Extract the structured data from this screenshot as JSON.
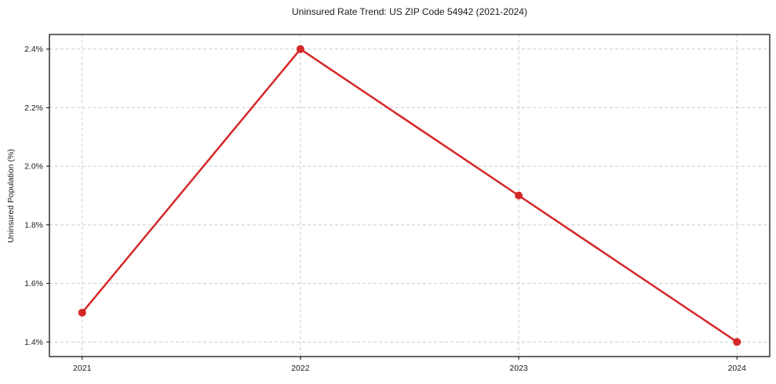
{
  "chart_data": {
    "type": "line",
    "title": "Uninsured Rate Trend: US ZIP Code 54942 (2021-2024)",
    "xlabel": "",
    "ylabel": "Uninsured Population (%)",
    "x": [
      2021,
      2022,
      2023,
      2024
    ],
    "y": [
      1.5,
      2.4,
      1.9,
      1.4
    ],
    "xticks": [
      2021,
      2022,
      2023,
      2024
    ],
    "xtick_labels": [
      "2021",
      "2022",
      "2023",
      "2024"
    ],
    "yticks": [
      1.4,
      1.6,
      1.8,
      2.0,
      2.2,
      2.4
    ],
    "ytick_labels": [
      "1.4%",
      "1.6%",
      "1.8%",
      "2.0%",
      "2.2%",
      "2.4%"
    ],
    "xlim": [
      2020.85,
      2024.15
    ],
    "ylim": [
      1.35,
      2.45
    ],
    "grid": true,
    "grid_style": "dashed",
    "legend": "none",
    "colors": {
      "line": "#d62728",
      "marker": "#d62728",
      "grid": "#cccccc",
      "spine": "#000000",
      "text": "#1a1a1a",
      "background": "#ffffff"
    }
  }
}
